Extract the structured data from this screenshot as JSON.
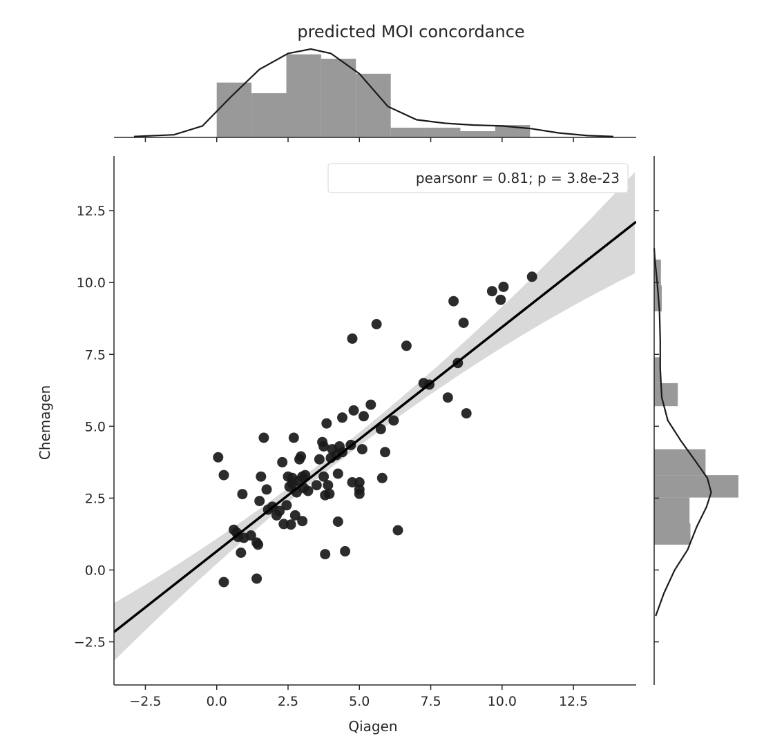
{
  "chart_data": {
    "type": "scatter",
    "title": "predicted MOI concordance",
    "xlabel": "Qiagen",
    "ylabel": "Chemagen",
    "xlim": [
      -3.6,
      14.7
    ],
    "ylim": [
      -4.0,
      14.4
    ],
    "x_ticks": [
      -2.5,
      0.0,
      2.5,
      5.0,
      7.5,
      10.0,
      12.5
    ],
    "x_tick_labels": [
      "−2.5",
      "0.0",
      "2.5",
      "5.0",
      "7.5",
      "10.0",
      "12.5"
    ],
    "y_ticks": [
      -2.5,
      0.0,
      2.5,
      5.0,
      7.5,
      10.0,
      12.5
    ],
    "y_tick_labels": [
      "−2.5",
      "0.0",
      "2.5",
      "5.0",
      "7.5",
      "10.0",
      "12.5"
    ],
    "grid": false,
    "legend_position": "top-right",
    "annotation": "pearsonr = 0.81; p = 3.8e-23",
    "points_color": "#1a1a1a",
    "regression_line": {
      "slope": 0.78,
      "intercept": 0.65,
      "color": "#000000"
    },
    "confidence_band_color": "#d9d9d9",
    "points": [
      [
        0.05,
        3.92
      ],
      [
        0.25,
        -0.42
      ],
      [
        0.25,
        3.3
      ],
      [
        0.6,
        1.4
      ],
      [
        0.7,
        1.3
      ],
      [
        0.75,
        1.15
      ],
      [
        0.85,
        0.6
      ],
      [
        0.9,
        2.64
      ],
      [
        0.95,
        1.12
      ],
      [
        1.2,
        1.2
      ],
      [
        1.4,
        0.95
      ],
      [
        1.4,
        -0.3
      ],
      [
        1.45,
        0.88
      ],
      [
        1.5,
        2.4
      ],
      [
        1.55,
        3.25
      ],
      [
        1.65,
        4.6
      ],
      [
        1.75,
        2.8
      ],
      [
        1.8,
        2.1
      ],
      [
        1.95,
        2.2
      ],
      [
        2.1,
        1.9
      ],
      [
        2.2,
        2.05
      ],
      [
        2.3,
        3.75
      ],
      [
        2.35,
        1.6
      ],
      [
        2.45,
        2.25
      ],
      [
        2.5,
        3.25
      ],
      [
        2.55,
        2.9
      ],
      [
        2.6,
        1.58
      ],
      [
        2.65,
        3.0
      ],
      [
        2.65,
        3.2
      ],
      [
        2.7,
        4.6
      ],
      [
        2.75,
        1.9
      ],
      [
        2.8,
        2.7
      ],
      [
        2.85,
        3.1
      ],
      [
        2.9,
        3.85
      ],
      [
        2.95,
        3.95
      ],
      [
        3.0,
        3.25
      ],
      [
        3.0,
        1.7
      ],
      [
        3.05,
        2.85
      ],
      [
        3.1,
        3.3
      ],
      [
        3.2,
        2.75
      ],
      [
        3.5,
        2.95
      ],
      [
        3.6,
        3.85
      ],
      [
        3.7,
        4.45
      ],
      [
        3.75,
        4.3
      ],
      [
        3.75,
        3.25
      ],
      [
        3.8,
        2.6
      ],
      [
        3.8,
        0.55
      ],
      [
        3.85,
        5.1
      ],
      [
        3.9,
        2.95
      ],
      [
        3.95,
        2.65
      ],
      [
        4.0,
        3.9
      ],
      [
        4.05,
        4.2
      ],
      [
        4.2,
        4.0
      ],
      [
        4.25,
        3.35
      ],
      [
        4.25,
        1.68
      ],
      [
        4.3,
        4.3
      ],
      [
        4.4,
        5.3
      ],
      [
        4.4,
        4.1
      ],
      [
        4.5,
        0.65
      ],
      [
        4.7,
        4.35
      ],
      [
        4.75,
        3.05
      ],
      [
        4.75,
        8.05
      ],
      [
        4.8,
        5.55
      ],
      [
        5.0,
        2.8
      ],
      [
        5.0,
        3.05
      ],
      [
        5.0,
        2.65
      ],
      [
        5.1,
        4.2
      ],
      [
        5.15,
        5.35
      ],
      [
        5.4,
        5.75
      ],
      [
        5.6,
        8.55
      ],
      [
        5.75,
        4.9
      ],
      [
        5.8,
        3.2
      ],
      [
        5.9,
        4.1
      ],
      [
        6.2,
        5.2
      ],
      [
        6.35,
        1.38
      ],
      [
        6.65,
        7.8
      ],
      [
        7.25,
        6.5
      ],
      [
        7.45,
        6.45
      ],
      [
        8.1,
        6.0
      ],
      [
        8.3,
        9.35
      ],
      [
        8.45,
        7.2
      ],
      [
        8.65,
        8.6
      ],
      [
        8.75,
        5.45
      ],
      [
        9.65,
        9.7
      ],
      [
        9.95,
        9.4
      ],
      [
        10.05,
        9.85
      ],
      [
        11.05,
        10.2
      ]
    ],
    "x_histogram": {
      "bin_edges": [
        0.0,
        1.22,
        2.44,
        3.66,
        4.88,
        6.1,
        7.32,
        8.54,
        9.76,
        10.98
      ],
      "heights": [
        0.62,
        0.5,
        0.94,
        0.89,
        0.72,
        0.11,
        0.11,
        0.07,
        0.14
      ],
      "color": "#999999"
    },
    "y_histogram": {
      "bin_edges": [
        -0.4,
        0.88,
        1.62,
        2.52,
        3.3,
        4.2,
        4.9,
        5.7,
        6.5,
        7.4,
        8.2,
        9.0,
        9.9,
        10.8
      ],
      "heights": [
        0.0,
        0.43,
        0.42,
        1.0,
        0.61,
        0.0,
        0.0,
        0.28,
        0.07,
        0.0,
        0.0,
        0.09,
        0.08
      ],
      "color": "#999999"
    },
    "kde_x": {
      "x": [
        -2.9,
        -1.5,
        -0.5,
        0.5,
        1.5,
        2.5,
        3.3,
        4.0,
        5.0,
        6.0,
        7.0,
        8.0,
        9.0,
        10.0,
        11.0,
        12.0,
        13.0,
        13.9
      ],
      "density": [
        0.01,
        0.03,
        0.13,
        0.46,
        0.77,
        0.95,
        1.0,
        0.95,
        0.72,
        0.35,
        0.2,
        0.16,
        0.14,
        0.13,
        0.1,
        0.05,
        0.02,
        0.01
      ]
    },
    "kde_y": {
      "y": [
        -1.6,
        -0.8,
        0.0,
        0.7,
        1.5,
        2.2,
        2.7,
        3.2,
        3.8,
        4.5,
        5.2,
        6.0,
        7.0,
        8.0,
        9.0,
        10.0,
        10.8,
        11.2
      ],
      "density": [
        0.02,
        0.13,
        0.27,
        0.44,
        0.56,
        0.69,
        0.75,
        0.7,
        0.54,
        0.35,
        0.18,
        0.1,
        0.08,
        0.08,
        0.07,
        0.04,
        0.01,
        0.0
      ]
    }
  }
}
